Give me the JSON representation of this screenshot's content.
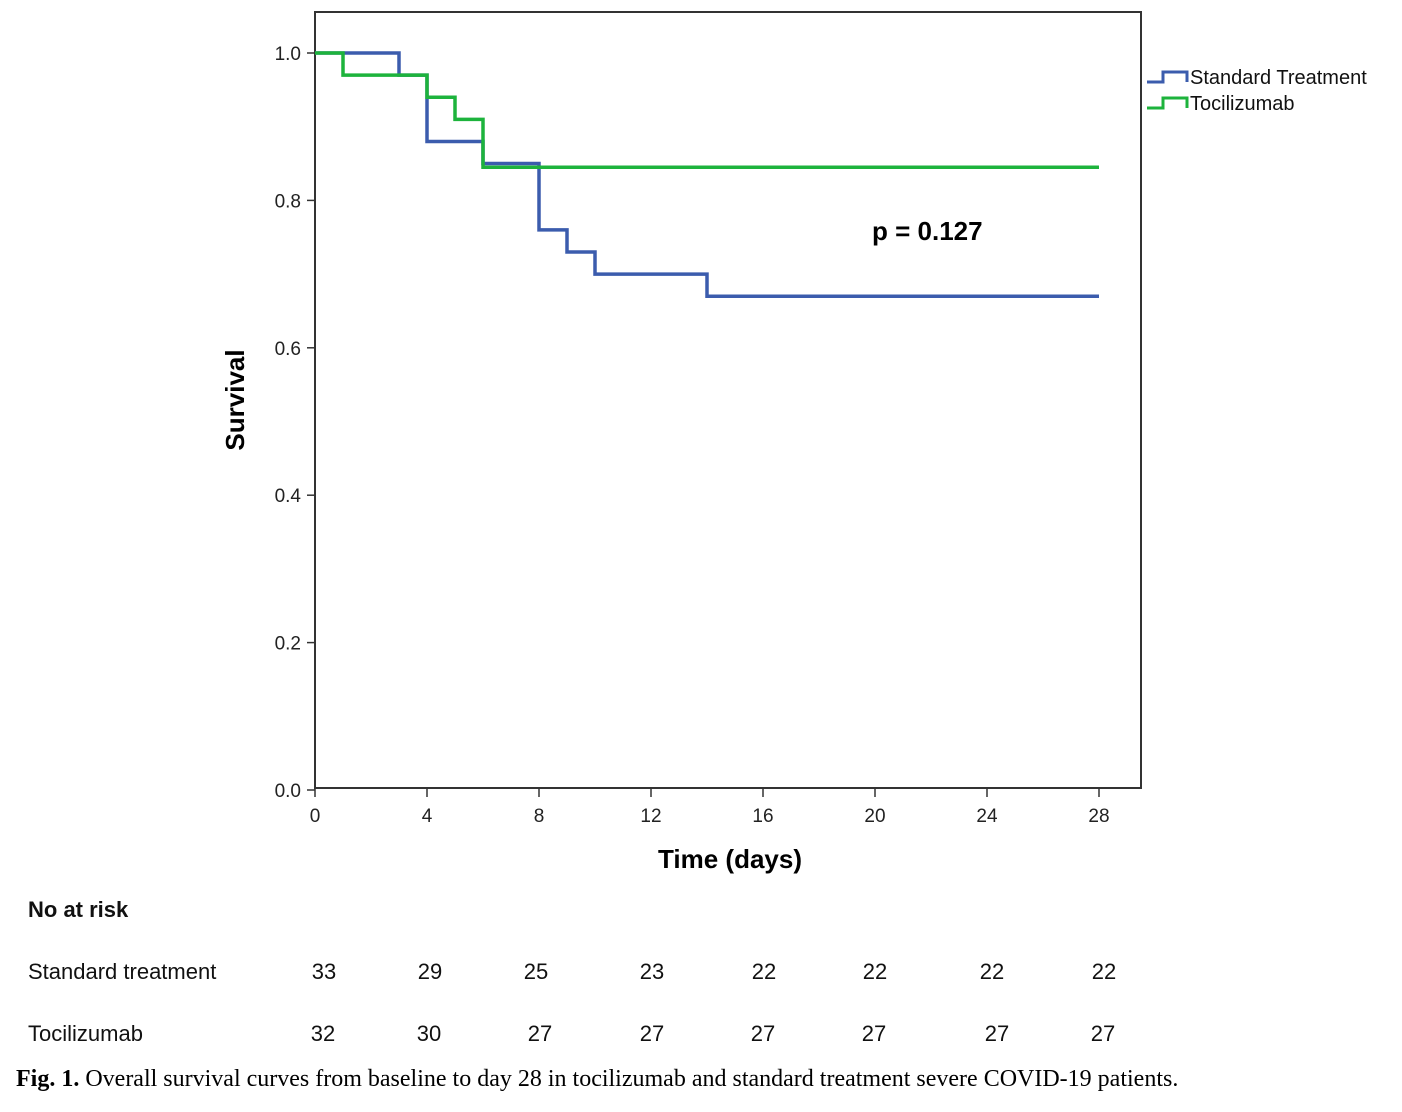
{
  "chart_data": {
    "type": "line",
    "subtype": "kaplan-meier step",
    "xlabel": "Time (days)",
    "ylabel": "Survival",
    "xlim": [
      0,
      28
    ],
    "ylim": [
      0,
      1
    ],
    "xticks": [
      "0",
      "4",
      "8",
      "12",
      "16",
      "20",
      "24",
      "28"
    ],
    "yticks": [
      "0.0",
      "0.2",
      "0.4",
      "0.6",
      "0.8",
      "1.0"
    ],
    "legend_position": "top-right, outside plot",
    "annotation": "p = 0.127",
    "grid": false,
    "series": [
      {
        "name": "Standard Treatment",
        "color": "#3b5cad",
        "x": [
          0,
          3,
          4,
          6,
          8,
          9,
          10,
          14,
          28
        ],
        "y": [
          1.0,
          0.97,
          0.88,
          0.85,
          0.76,
          0.73,
          0.7,
          0.67,
          0.67
        ]
      },
      {
        "name": "Tocilizumab",
        "color": "#1db33c",
        "x": [
          0,
          1,
          4,
          5,
          6,
          28
        ],
        "y": [
          1.0,
          0.97,
          0.94,
          0.91,
          0.845,
          0.845
        ]
      }
    ]
  },
  "risk_table": {
    "title": "No at risk",
    "rows": [
      {
        "label": "Standard treatment",
        "values": [
          "33",
          "29",
          "25",
          "23",
          "22",
          "22",
          "22",
          "22"
        ]
      },
      {
        "label": "Tocilizumab",
        "values": [
          "32",
          "30",
          "27",
          "27",
          "27",
          "27",
          "27",
          "27"
        ]
      }
    ]
  },
  "caption": {
    "label": "Fig. 1.",
    "text": " Overall survival curves from baseline to day 28 in tocilizumab and standard treatment severe COVID-19 patients."
  }
}
